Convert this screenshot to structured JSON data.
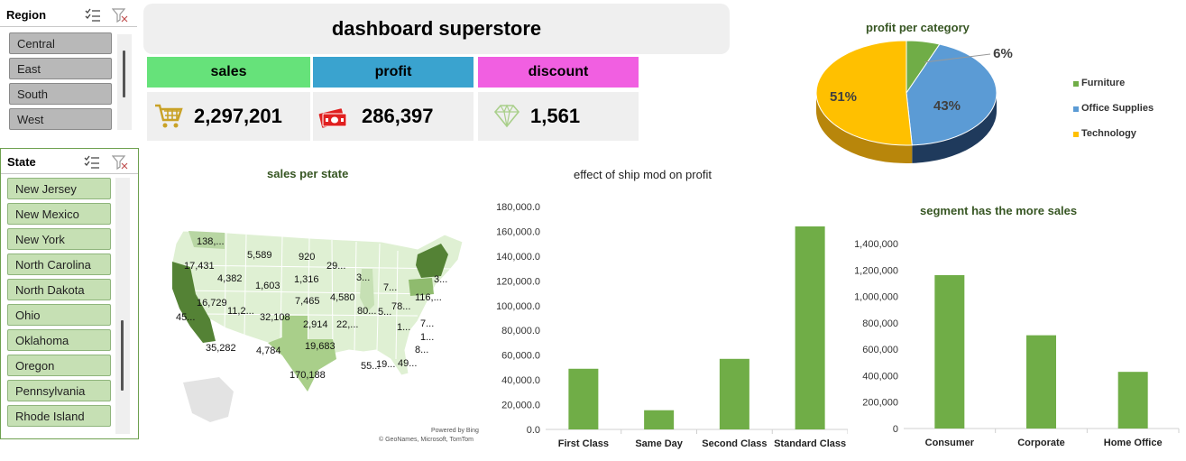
{
  "header": {
    "title": "dashboard superstore"
  },
  "kpis": [
    {
      "label": "sales",
      "value": "2,297,201",
      "color": "#66e27a",
      "icon": "shopping-cart-icon"
    },
    {
      "label": "profit",
      "value": "286,397",
      "color": "#3aa3cf",
      "icon": "money-icon"
    },
    {
      "label": "discount",
      "value": "1,561",
      "color": "#f15fe1",
      "icon": "diamond-icon"
    }
  ],
  "slicers": {
    "region": {
      "title": "Region",
      "items": [
        "Central",
        "East",
        "South",
        "West"
      ]
    },
    "state": {
      "title": "State",
      "items": [
        "New Jersey",
        "New Mexico",
        "New York",
        "North Carolina",
        "North Dakota",
        "Ohio",
        "Oklahoma",
        "Oregon",
        "Pennsylvania",
        "Rhode Island"
      ]
    }
  },
  "map": {
    "title": "sales per state",
    "attribution_1": "Powered by Bing",
    "attribution_2": "© GeoNames, Microsoft, TomTom",
    "labels": [
      "138,...",
      "5,589",
      "920",
      "29...",
      "17,431",
      "4,382",
      "1,603",
      "1,316",
      "3...",
      "3...",
      "16,729",
      "11,2...",
      "32,108",
      "7,465",
      "4,580",
      "7...",
      "116,...",
      "45...",
      "80...",
      "5...",
      "78...",
      "2,914",
      "22,...",
      "7...",
      "35,282",
      "4,784",
      "19,683",
      "1...",
      "55...",
      "8...",
      "170,188",
      "1...",
      "19...",
      "49..."
    ]
  },
  "chart_data": [
    {
      "type": "pie",
      "title": "profit per category",
      "categories": [
        "Furniture",
        "Office Supplies",
        "Technology"
      ],
      "values": [
        6,
        43,
        51
      ],
      "data_labels": [
        "6%",
        "43%",
        "51%"
      ],
      "colors": [
        "#70ad47",
        "#5b9bd5",
        "#ffc000"
      ],
      "legend": "right"
    },
    {
      "type": "bar",
      "title": "effect of ship mod on profit",
      "categories": [
        "First Class",
        "Same Day",
        "Second Class",
        "Standard Class"
      ],
      "values": [
        49000,
        15500,
        57000,
        164000
      ],
      "ylim": [
        0,
        180000
      ],
      "yticks": [
        "0.0",
        "20,000.0",
        "40,000.0",
        "60,000.0",
        "80,000.0",
        "100,000.0",
        "120,000.0",
        "140,000.0",
        "160,000.0",
        "180,000.0"
      ],
      "color": "#70ad47"
    },
    {
      "type": "bar",
      "title": "segment has the more sales",
      "categories": [
        "Consumer",
        "Corporate",
        "Home Office"
      ],
      "values": [
        1161000,
        706000,
        429000
      ],
      "ylim": [
        0,
        1400000
      ],
      "yticks": [
        "0",
        "200,000",
        "400,000",
        "600,000",
        "800,000",
        "1,000,000",
        "1,200,000",
        "1,400,000"
      ],
      "color": "#70ad47"
    }
  ]
}
